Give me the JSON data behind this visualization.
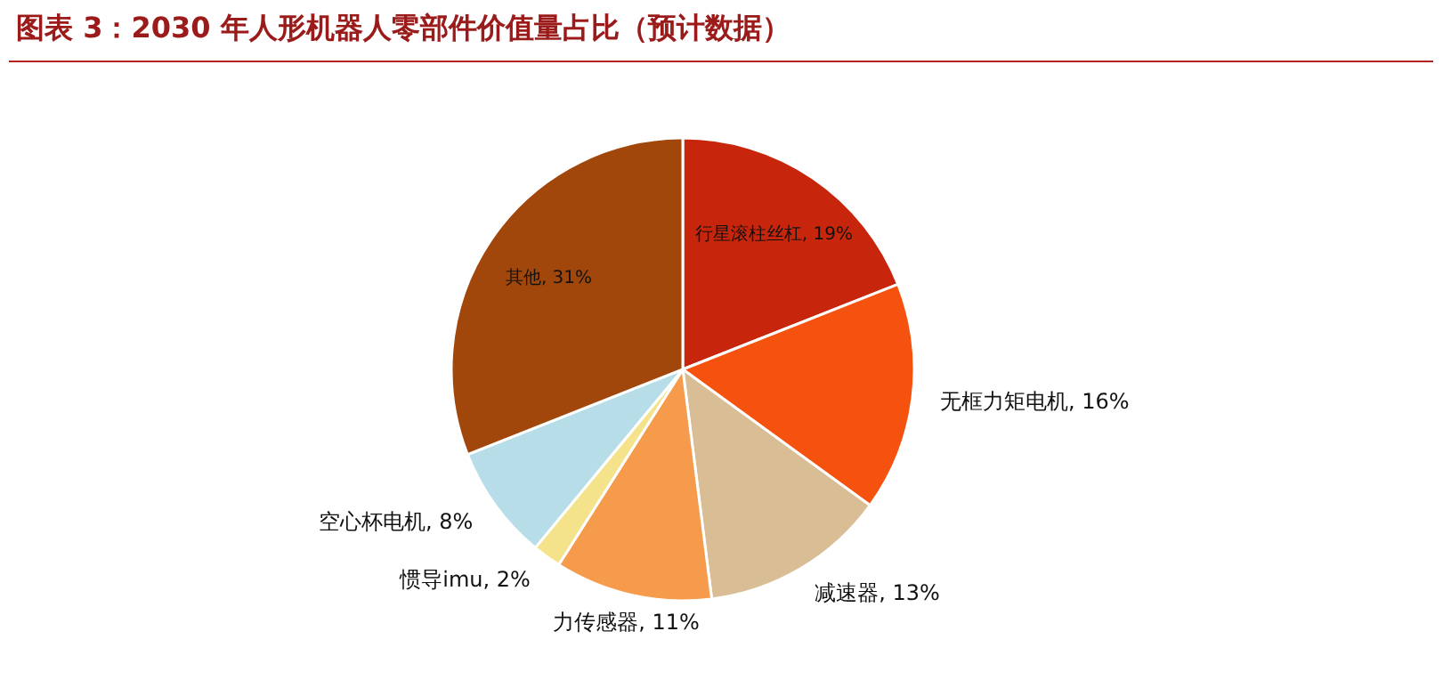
{
  "chart_data": {
    "type": "pie",
    "title": "图表 3：2030 年人形机器人零部件价值量占比（预计数据）",
    "categories": [
      "行星滚柱丝杠",
      "无框力矩电机",
      "减速器",
      "力传感器",
      "惯导imu",
      "空心杯电机",
      "其他"
    ],
    "values": [
      19,
      16,
      13,
      11,
      2,
      8,
      31
    ],
    "value_labels": [
      "19%",
      "16%",
      "13%",
      "11%",
      "2%",
      "8%",
      "31%"
    ],
    "colors": [
      "#c8260c",
      "#f5520f",
      "#d8bd95",
      "#f69a4b",
      "#f4e38b",
      "#b7dde8",
      "#a2470b"
    ],
    "legend": false
  }
}
